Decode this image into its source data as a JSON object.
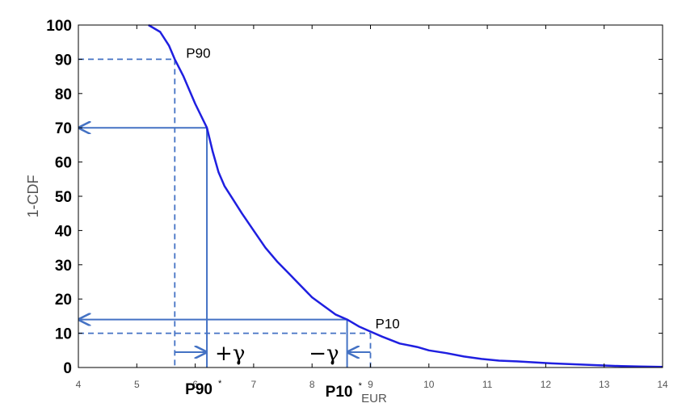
{
  "chart_data": {
    "type": "line",
    "xlabel": "EUR",
    "ylabel": "1-CDF",
    "xlim": [
      4,
      14
    ],
    "ylim": [
      0,
      100
    ],
    "xticks": [
      "4",
      "5",
      "6",
      "7",
      "8",
      "9",
      "10",
      "11",
      "12",
      "13",
      "14"
    ],
    "yticks": [
      "0",
      "10",
      "20",
      "30",
      "40",
      "50",
      "60",
      "70",
      "80",
      "90",
      "100"
    ],
    "grid": false,
    "series": [
      {
        "color": "#1f1fe0",
        "x": [
          5.2,
          5.4,
          5.55,
          5.65,
          5.8,
          6.0,
          6.2,
          6.3,
          6.4,
          6.5,
          6.65,
          6.8,
          7.0,
          7.2,
          7.4,
          7.6,
          7.8,
          8.0,
          8.2,
          8.4,
          8.6,
          8.8,
          9.0,
          9.2,
          9.5,
          9.8,
          10.0,
          10.3,
          10.6,
          10.9,
          11.2,
          11.5,
          11.8,
          12.1,
          12.4,
          12.7,
          13.0,
          13.3,
          13.6,
          14.0
        ],
        "y": [
          100,
          98,
          94,
          90,
          85,
          77,
          70,
          63,
          57,
          53,
          49,
          45,
          40,
          35,
          31,
          27.5,
          24,
          20.5,
          18,
          15.5,
          14,
          12,
          10.5,
          9,
          7,
          6,
          5,
          4.2,
          3.2,
          2.5,
          2,
          1.8,
          1.5,
          1.2,
          1,
          0.8,
          0.6,
          0.4,
          0.3,
          0.2
        ]
      }
    ],
    "annotations": {
      "p90_label": "P90",
      "p10_label": "P10",
      "p90_star_label": "P90",
      "p10_star_label": "P10",
      "star": "*",
      "plus_gamma": "+γ",
      "minus_gamma": "−γ",
      "p90": {
        "x": 5.65,
        "y": 90
      },
      "p10": {
        "x": 9.0,
        "y": 10
      },
      "p90_star": {
        "x": 6.2,
        "y": 70
      },
      "p10_star": {
        "x": 8.6,
        "y": 14
      }
    },
    "accent_color": "#4472c4"
  }
}
